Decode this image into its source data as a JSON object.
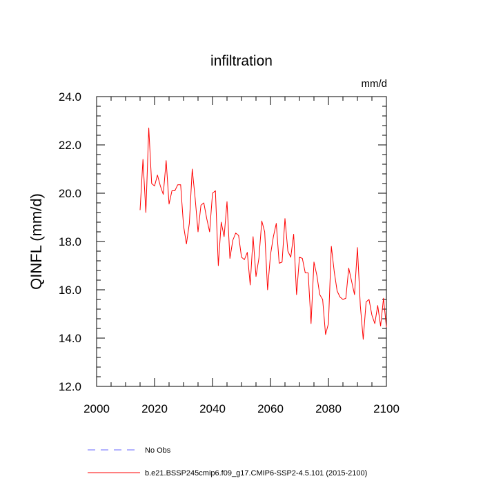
{
  "chart_data": {
    "type": "line",
    "title": "infiltration",
    "units_label": "mm/d",
    "ylabel": "QINFL  (mm/d)",
    "xlabel": "",
    "xlim": [
      2000,
      2100
    ],
    "ylim": [
      12.0,
      24.0
    ],
    "x_ticks": [
      "2000",
      "2020",
      "2040",
      "2060",
      "2080",
      "2100"
    ],
    "x_tick_values": [
      2000,
      2020,
      2040,
      2060,
      2080,
      2100
    ],
    "y_ticks": [
      "12.0",
      "14.0",
      "16.0",
      "18.0",
      "20.0",
      "22.0",
      "24.0"
    ],
    "y_tick_values": [
      12,
      14,
      16,
      18,
      20,
      22,
      24
    ],
    "grid": false,
    "legend_placement": "bottom",
    "legend": [
      {
        "label": "No Obs",
        "color": "#6666ff",
        "style": "dashed"
      },
      {
        "label": "b.e21.BSSP245cmip6.f09_g17.CMIP6-SSP2-4.5.101 (2015-2100)",
        "color": "#ff0000",
        "style": "solid"
      }
    ],
    "series": [
      {
        "name": "b.e21.BSSP245cmip6.f09_g17.CMIP6-SSP2-4.5.101 (2015-2100)",
        "color": "#ff0000",
        "x": [
          2015,
          2016,
          2017,
          2018,
          2019,
          2020,
          2021,
          2022,
          2023,
          2024,
          2025,
          2026,
          2027,
          2028,
          2029,
          2030,
          2031,
          2032,
          2033,
          2034,
          2035,
          2036,
          2037,
          2038,
          2039,
          2040,
          2041,
          2042,
          2043,
          2044,
          2045,
          2046,
          2047,
          2048,
          2049,
          2050,
          2051,
          2052,
          2053,
          2054,
          2055,
          2056,
          2057,
          2058,
          2059,
          2060,
          2061,
          2062,
          2063,
          2064,
          2065,
          2066,
          2067,
          2068,
          2069,
          2070,
          2071,
          2072,
          2073,
          2074,
          2075,
          2076,
          2077,
          2078,
          2079,
          2080,
          2081,
          2082,
          2083,
          2084,
          2085,
          2086,
          2087,
          2088,
          2089,
          2090,
          2091,
          2092,
          2093,
          2094,
          2095,
          2096,
          2097,
          2098,
          2099,
          2100
        ],
        "values": [
          19.3,
          21.4,
          19.2,
          22.7,
          20.4,
          20.3,
          20.75,
          20.3,
          19.95,
          21.35,
          19.55,
          20.1,
          20.1,
          20.35,
          20.35,
          18.65,
          17.9,
          18.75,
          21.0,
          19.8,
          18.4,
          19.5,
          19.6,
          18.95,
          18.4,
          20.0,
          20.1,
          17.0,
          18.8,
          18.2,
          19.65,
          17.3,
          18.05,
          18.35,
          18.25,
          17.35,
          17.25,
          17.55,
          16.2,
          18.2,
          16.55,
          17.3,
          18.85,
          18.4,
          16.0,
          17.45,
          18.2,
          18.75,
          17.1,
          17.15,
          18.95,
          17.6,
          17.35,
          18.3,
          15.8,
          17.35,
          17.3,
          16.7,
          16.7,
          14.6,
          17.15,
          16.6,
          15.8,
          15.6,
          14.15,
          14.6,
          17.8,
          16.75,
          15.95,
          15.7,
          15.6,
          15.65,
          16.9,
          16.35,
          15.8,
          17.75,
          15.35,
          13.95,
          15.5,
          15.6,
          14.95,
          14.6,
          15.35,
          14.5,
          15.65,
          14.45
        ]
      }
    ]
  }
}
